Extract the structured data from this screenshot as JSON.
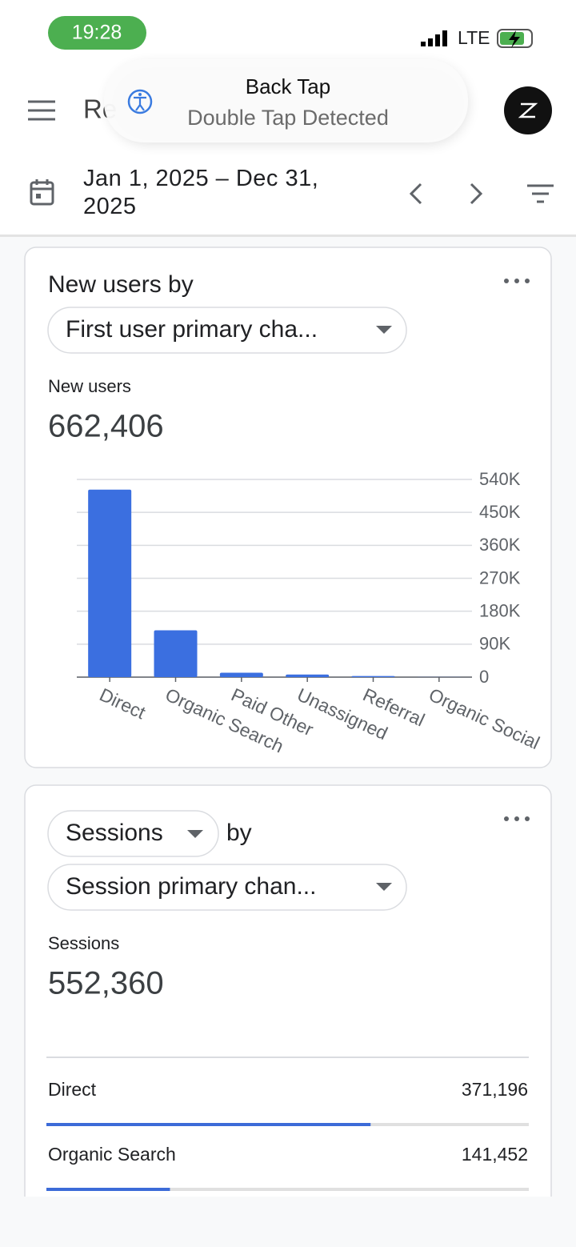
{
  "status_bar": {
    "time": "19:28",
    "network": "LTE"
  },
  "toast": {
    "title": "Back Tap",
    "message": "Double Tap Detected"
  },
  "header": {
    "title": "Re",
    "date_range": "Jan 1, 2025 – Dec 31, 2025"
  },
  "cards": [
    {
      "title": "New users by",
      "dimension": "First user primary cha...",
      "metric_label": "New users",
      "metric_value": "662,406",
      "chart": {
        "type": "bar",
        "categories": [
          "Direct",
          "Organic Search",
          "Paid Other",
          "Unassigned",
          "Referral",
          "Organic Social"
        ],
        "values": [
          512000,
          128000,
          12000,
          7000,
          3000,
          400
        ],
        "color": "#3b6fe0",
        "ylim": [
          0,
          540000
        ],
        "yticks": [
          0,
          {
            "value": 90000,
            "label": "90K"
          },
          {
            "value": 180000,
            "label": "180K"
          },
          {
            "value": 270000,
            "label": "270K"
          },
          {
            "value": 360000,
            "label": "360K"
          },
          {
            "value": 450000,
            "label": "450K"
          },
          {
            "value": 540000,
            "label": "540K"
          }
        ],
        "grid": true
      }
    },
    {
      "metric": "Sessions",
      "connector": "by",
      "dimension": "Session primary chan...",
      "metric_label": "Sessions",
      "metric_value": {
        "value": 552360,
        "label": "552,360"
      },
      "rows": [
        {
          "name": "Direct",
          "value": 371196,
          "label": "371,196"
        },
        {
          "name": "Organic Search",
          "value": 141452,
          "label": "141,452"
        }
      ],
      "bar_color": "#3c6bd8"
    }
  ]
}
